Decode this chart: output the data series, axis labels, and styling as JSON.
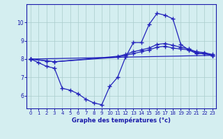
{
  "line1_x": [
    0,
    1,
    2,
    3,
    4,
    5,
    6,
    7,
    8,
    9,
    10,
    11,
    12,
    13,
    14,
    15,
    16,
    17,
    18,
    19,
    20,
    21,
    22,
    23
  ],
  "line1_y": [
    8.0,
    7.8,
    7.6,
    7.5,
    6.4,
    6.3,
    6.1,
    5.8,
    5.6,
    5.5,
    6.5,
    7.0,
    8.1,
    8.9,
    8.9,
    9.9,
    10.5,
    10.4,
    10.2,
    8.8,
    8.5,
    8.3,
    8.3,
    8.2
  ],
  "line2_x": [
    0,
    23
  ],
  "line2_y": [
    8.0,
    8.2
  ],
  "line3_x": [
    0,
    2,
    3,
    11,
    12,
    13,
    14,
    15,
    16,
    17,
    18,
    19,
    20,
    21,
    22,
    23
  ],
  "line3_y": [
    8.0,
    7.9,
    7.85,
    8.1,
    8.2,
    8.3,
    8.4,
    8.5,
    8.65,
    8.7,
    8.6,
    8.55,
    8.5,
    8.35,
    8.3,
    8.2
  ],
  "line4_x": [
    0,
    2,
    3,
    11,
    12,
    13,
    14,
    15,
    16,
    17,
    18,
    19,
    20,
    21,
    22,
    23
  ],
  "line4_y": [
    8.0,
    7.9,
    7.85,
    8.15,
    8.25,
    8.4,
    8.5,
    8.6,
    8.8,
    8.85,
    8.75,
    8.65,
    8.55,
    8.4,
    8.35,
    8.25
  ],
  "xlim": [
    -0.5,
    23.5
  ],
  "ylim": [
    5.3,
    11.0
  ],
  "yticks": [
    6,
    7,
    8,
    9,
    10
  ],
  "xticks": [
    0,
    1,
    2,
    3,
    4,
    5,
    6,
    7,
    8,
    9,
    10,
    11,
    12,
    13,
    14,
    15,
    16,
    17,
    18,
    19,
    20,
    21,
    22,
    23
  ],
  "xlabel": "Graphe des températures (°c)",
  "line_color": "#2222bb",
  "bg_color": "#d4eef0",
  "grid_color": "#aacccc",
  "tick_color": "#1a1aaa",
  "xlabel_color": "#1a1aaa",
  "figsize": [
    3.2,
    2.0
  ],
  "dpi": 100
}
